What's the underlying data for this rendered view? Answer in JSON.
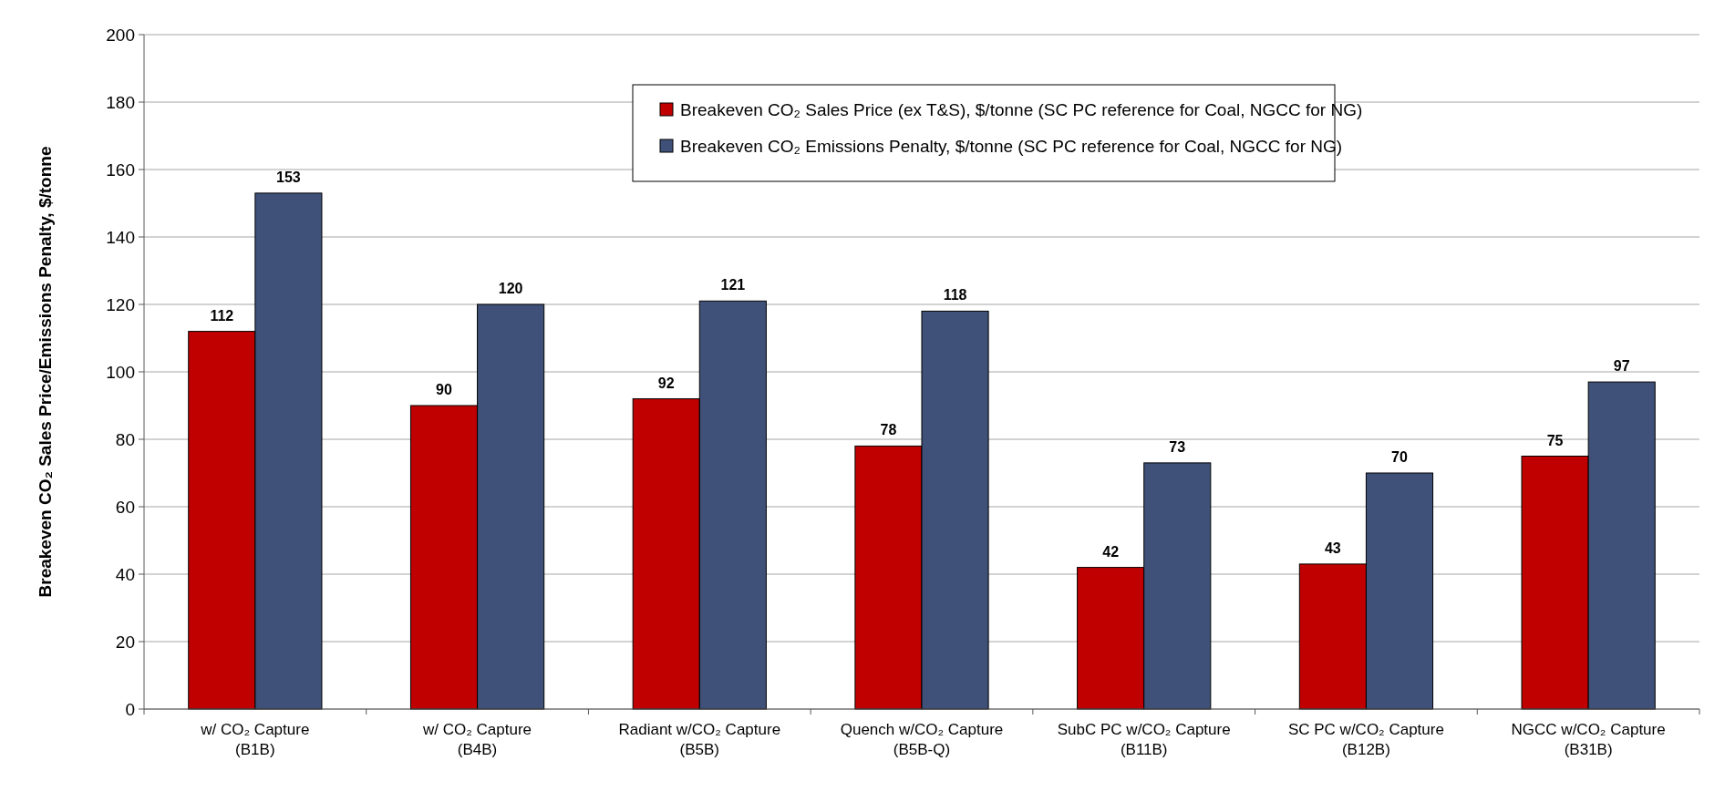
{
  "chart_data": {
    "type": "bar",
    "ylabel": "Breakeven CO₂ Sales Price/Emissions Penalty, $/tonne",
    "categories": [
      "w/ CO₂ Capture (B1B)",
      "w/ CO₂ Capture (B4B)",
      "Radiant w/CO₂ Capture (B5B)",
      "Quench w/CO₂ Capture (B5B-Q)",
      "SubC PC w/CO₂ Capture (B11B)",
      "SC PC w/CO₂ Capture (B12B)",
      "NGCC w/CO₂ Capture (B31B)"
    ],
    "series": [
      {
        "name": "Breakeven CO₂ Sales Price (ex T&S), $/tonne (SC PC reference for Coal, NGCC for NG)",
        "color": "#c00000",
        "values": [
          112,
          90,
          92,
          78,
          42,
          43,
          75
        ]
      },
      {
        "name": "Breakeven CO₂ Emissions Penalty, $/tonne (SC PC reference for Coal, NGCC for NG)",
        "color": "#3f5179",
        "values": [
          153,
          120,
          121,
          118,
          73,
          70,
          97
        ]
      }
    ],
    "ylim": [
      0,
      200
    ],
    "yticks": [
      0,
      20,
      40,
      60,
      80,
      100,
      120,
      140,
      160,
      180,
      200
    ],
    "grid": "y",
    "legend": "top right",
    "data_labels": true
  }
}
